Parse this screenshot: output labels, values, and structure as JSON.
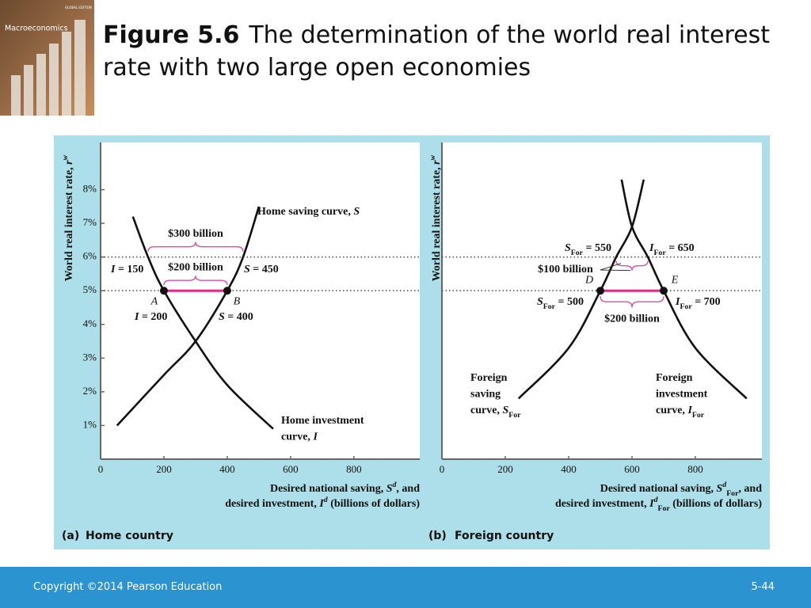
{
  "cover": {
    "title": "Macroeconomics",
    "edition": "GLOBAL EDITION"
  },
  "header": {
    "figure": "Figure 5.6",
    "title": "The determination of the world real interest rate with two large open economies"
  },
  "footer": {
    "copyright": "Copyright ©2014 Pearson Education",
    "page": "5-44"
  },
  "chart_data": [
    {
      "type": "line",
      "panel": "(a)",
      "panel_title": "Home country",
      "ylabel": [
        {
          "t": "World real interest rate, "
        },
        {
          "t": "r",
          "i": true
        },
        {
          "t": "w",
          "i": true,
          "sup": true
        }
      ],
      "xlabel": [
        [
          {
            "t": "Desired national saving, "
          },
          {
            "t": "S",
            "i": true
          },
          {
            "t": "d",
            "i": true,
            "sup": true
          },
          {
            "t": ", and"
          }
        ],
        [
          {
            "t": "desired investment, "
          },
          {
            "t": "I",
            "i": true
          },
          {
            "t": "d",
            "i": true,
            "sup": true
          },
          {
            "t": " (billions of dollars)"
          }
        ]
      ],
      "xlim": [
        0,
        1008
      ],
      "xticks": [
        0,
        200,
        400,
        600,
        800
      ],
      "ylim": [
        0,
        9.4
      ],
      "yticks": [
        {
          "value": 1,
          "label": "1%"
        },
        {
          "value": 2,
          "label": "2%"
        },
        {
          "value": 3,
          "label": "3%"
        },
        {
          "value": 4,
          "label": "4%"
        },
        {
          "value": 5,
          "label": "5%"
        },
        {
          "value": 6,
          "label": "6%"
        },
        {
          "value": 7,
          "label": "7%"
        },
        {
          "value": 8,
          "label": "8%"
        }
      ],
      "reference_lines": [
        6,
        5
      ],
      "series": [
        {
          "color": "#111111",
          "x": [
            52,
            200,
            300,
            400,
            450,
            500
          ],
          "values": [
            1,
            2.5,
            3.5,
            5,
            6,
            7.5
          ]
        },
        {
          "color": "#111111",
          "x": [
            102,
            150,
            200,
            300,
            400,
            545
          ],
          "values": [
            7.2,
            6,
            5,
            3.5,
            2.2,
            0.9
          ]
        }
      ],
      "points": [
        {
          "label": "A",
          "x": 200,
          "y": 5
        },
        {
          "label": "B",
          "x": 400,
          "y": 5
        }
      ],
      "gap": {
        "x": [
          200,
          400
        ],
        "y": 5,
        "color": "#e0268f"
      },
      "brace_color": "#d94fa6",
      "braces": [
        {
          "label": "$300 billion",
          "x": [
            150,
            450
          ],
          "y": 6
        },
        {
          "label": "$200 billion",
          "x": [
            200,
            400
          ],
          "y": 5
        }
      ],
      "annotations": [
        [
          [
            {
              "t": "Home saving curve, "
            },
            {
              "t": "S",
              "i": true
            }
          ]
        ],
        [
          [
            {
              "t": "I",
              "i": true
            },
            {
              "t": " = 150"
            }
          ]
        ],
        [
          [
            {
              "t": "S",
              "i": true
            },
            {
              "t": " = 450"
            }
          ]
        ],
        [
          [
            {
              "t": "I",
              "i": true
            },
            {
              "t": " = 200"
            }
          ]
        ],
        [
          [
            {
              "t": "S",
              "i": true
            },
            {
              "t": " = 400"
            }
          ]
        ],
        [
          [
            {
              "t": "Home investment"
            }
          ],
          [
            {
              "t": "curve, "
            },
            {
              "t": "I",
              "i": true
            }
          ]
        ]
      ]
    },
    {
      "type": "line",
      "panel": "(b)",
      "panel_title": "Foreign country",
      "ylabel": [
        {
          "t": "World real interest rate, "
        },
        {
          "t": "r",
          "i": true
        },
        {
          "t": "w",
          "i": true,
          "sup": true
        }
      ],
      "xlabel": [
        [
          {
            "t": "Desired national saving, "
          },
          {
            "t": "S",
            "i": true
          },
          {
            "t": "d",
            "i": true,
            "sup": true
          },
          {
            "t": "For",
            "sub": true
          },
          {
            "t": ", and"
          }
        ],
        [
          {
            "t": "desired investment, "
          },
          {
            "t": "I",
            "i": true
          },
          {
            "t": "d",
            "i": true,
            "sup": true
          },
          {
            "t": "For",
            "sub": true
          },
          {
            "t": " (billions of dollars)"
          }
        ]
      ],
      "xlim": [
        0,
        1010
      ],
      "xticks": [
        0,
        200,
        400,
        600,
        800
      ],
      "ylim": [
        0,
        9.4
      ],
      "reference_lines": [
        6,
        5
      ],
      "series": [
        {
          "color": "#111111",
          "x": [
            242,
            400,
            500,
            550,
            600,
            637
          ],
          "values": [
            1.8,
            3.3,
            5,
            6,
            6.9,
            8.3
          ]
        },
        {
          "color": "#111111",
          "x": [
            567,
            600,
            650,
            700,
            800,
            962
          ],
          "values": [
            8.3,
            6.9,
            6,
            5,
            3.3,
            1.8
          ]
        }
      ],
      "points": [
        {
          "label": "D",
          "x": 500,
          "y": 5
        },
        {
          "label": "E",
          "x": 700,
          "y": 5
        }
      ],
      "gap": {
        "x": [
          500,
          700
        ],
        "y": 5,
        "color": "#e0268f"
      },
      "brace_color": "#d94fa6",
      "braces": [
        {
          "label": "$100 billion",
          "x": [
            550,
            650
          ],
          "y": 6
        },
        {
          "label": "$200 billion",
          "x": [
            500,
            700
          ],
          "y": 5
        }
      ],
      "annotations": [
        [
          [
            {
              "t": "S",
              "i": true
            },
            {
              "t": "For",
              "sub": true
            },
            {
              "t": " = 550"
            }
          ]
        ],
        [
          [
            {
              "t": "I",
              "i": true
            },
            {
              "t": "For",
              "sub": true
            },
            {
              "t": " = 650"
            }
          ]
        ],
        [
          [
            {
              "t": "S",
              "i": true
            },
            {
              "t": "For",
              "sub": true
            },
            {
              "t": " = 500"
            }
          ]
        ],
        [
          [
            {
              "t": "I",
              "i": true
            },
            {
              "t": "For",
              "sub": true
            },
            {
              "t": " = 700"
            }
          ]
        ],
        [
          [
            {
              "t": "Foreign"
            }
          ],
          [
            {
              "t": "saving"
            }
          ],
          [
            {
              "t": "curve, "
            },
            {
              "t": "S",
              "i": true
            },
            {
              "t": "For",
              "sub": true
            }
          ]
        ],
        [
          [
            {
              "t": "Foreign"
            }
          ],
          [
            {
              "t": "investment"
            }
          ],
          [
            {
              "t": "curve, "
            },
            {
              "t": "I",
              "i": true
            },
            {
              "t": "For",
              "sub": true
            }
          ]
        ]
      ]
    }
  ]
}
